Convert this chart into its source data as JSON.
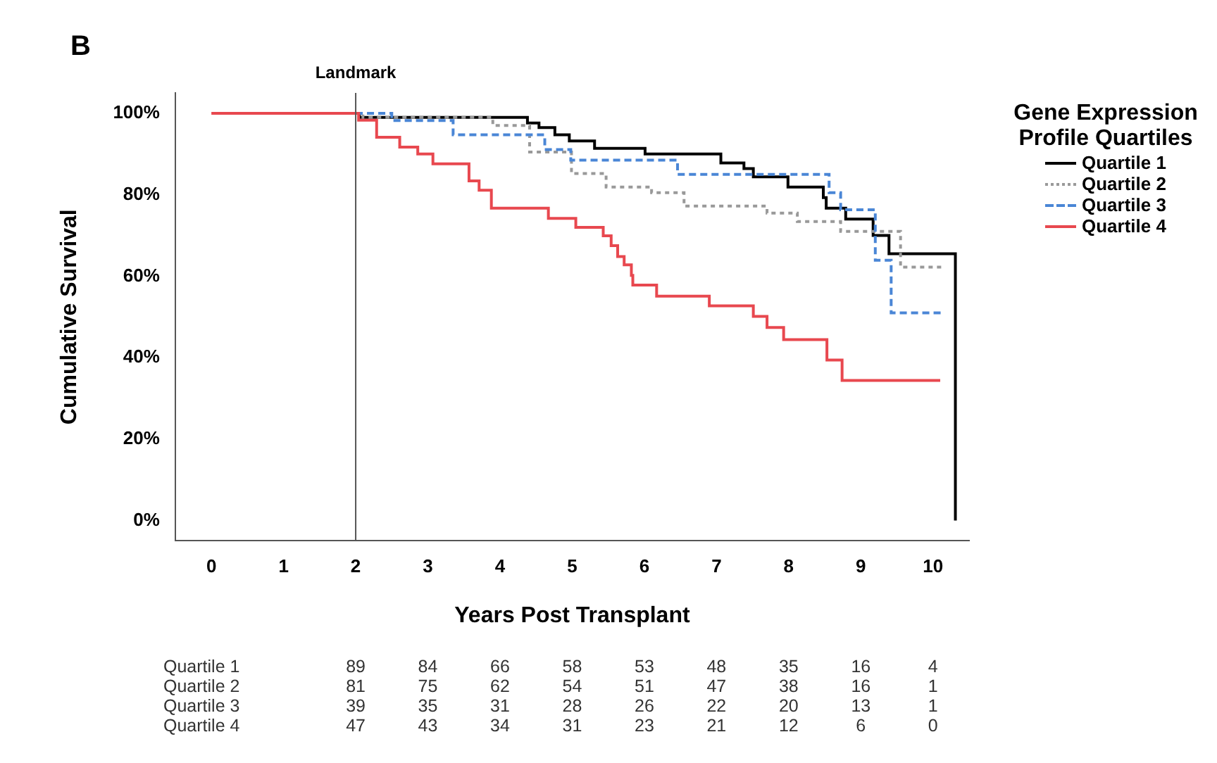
{
  "chart_data": [
    {
      "type": "step",
      "title": "B",
      "xlabel": "Years Post Transplant",
      "ylabel": "Cumulative Survival",
      "legend_title": "Gene Expression Profile Quartiles",
      "legend": "top right",
      "grid": false,
      "marker": "none",
      "xlim": [
        -0.5,
        10.5
      ],
      "xticks": [
        0,
        1,
        2,
        3,
        4,
        5,
        6,
        7,
        8,
        9,
        10
      ],
      "ylim": [
        -5,
        105
      ],
      "yticks": [
        {
          "value": 0,
          "label": "0%"
        },
        {
          "value": 20,
          "label": "20%"
        },
        {
          "value": 40,
          "label": "40%"
        },
        {
          "value": 60,
          "label": "60%"
        },
        {
          "value": 80,
          "label": "80%"
        },
        {
          "value": 100,
          "label": "100%"
        }
      ],
      "ref_lines": [
        {
          "axis": "x",
          "value": 2,
          "label": "Landmark",
          "color": "#555555",
          "line_style": "solid"
        }
      ],
      "series": [
        {
          "name": "Quartile 1",
          "color": "#000000",
          "line_style": "solid",
          "x": [
            2,
            2.05,
            4.38,
            4.54,
            4.76,
            4.96,
            5.31,
            6.01,
            7.06,
            7.38,
            7.51,
            7.99,
            8.48,
            8.52,
            8.79,
            9.17,
            9.39,
            10.31,
            10.31
          ],
          "values": [
            100,
            99,
            97.6,
            96.5,
            94.7,
            93.2,
            91.4,
            90,
            87.8,
            86.4,
            84.4,
            81.9,
            79.3,
            76.7,
            74,
            70,
            65.5,
            65.5,
            0
          ]
        },
        {
          "name": "Quartile 2",
          "color": "#999999",
          "line_style": "dotted",
          "x": [
            2,
            2.1,
            3.9,
            4.41,
            4.99,
            5.47,
            6.1,
            6.55,
            7.7,
            8.12,
            8.72,
            9.55,
            10.15
          ],
          "values": [
            100,
            99,
            97,
            90.5,
            85.2,
            81.9,
            80.5,
            77.2,
            75.5,
            73.4,
            71,
            62.2,
            62.2
          ]
        },
        {
          "name": "Quartile 3",
          "color": "#4a86d6",
          "line_style": "dashed",
          "x": [
            2,
            2.5,
            3.35,
            4.62,
            4.98,
            6.46,
            8.56,
            8.72,
            9.2,
            9.42,
            10.13
          ],
          "values": [
            100,
            98.2,
            94.7,
            91.1,
            88.5,
            85,
            80.5,
            76.3,
            63.9,
            51,
            51
          ]
        },
        {
          "name": "Quartile 4",
          "color": "#e8484f",
          "line_style": "solid",
          "x": [
            0,
            2.04,
            2.29,
            2.61,
            2.86,
            3.07,
            3.57,
            3.71,
            3.88,
            4.67,
            5.05,
            5.43,
            5.54,
            5.63,
            5.72,
            5.82,
            5.84,
            6.17,
            6.9,
            7.51,
            7.7,
            7.93,
            8.53,
            8.74,
            10.1
          ],
          "values": [
            100,
            98.3,
            94.1,
            91.7,
            90,
            87.6,
            83.4,
            81.1,
            76.7,
            74.2,
            72,
            69.9,
            67.5,
            64.8,
            62.8,
            60.2,
            57.8,
            55.1,
            52.7,
            50.1,
            47.4,
            44.4,
            39.4,
            34.4,
            34.4
          ]
        }
      ]
    },
    {
      "type": "heatmap",
      "data_labels": true,
      "categories": [
        null,
        null,
        null,
        null,
        null,
        null,
        null,
        null,
        null
      ],
      "y_categories": [
        "Quartile 1",
        "Quartile 2",
        "Quartile 3",
        "Quartile 4"
      ],
      "cells": [
        [
          89,
          84,
          66,
          58,
          53,
          48,
          35,
          16,
          4
        ],
        [
          81,
          75,
          62,
          54,
          51,
          47,
          38,
          16,
          1
        ],
        [
          39,
          35,
          31,
          28,
          26,
          22,
          20,
          13,
          1
        ],
        [
          47,
          43,
          34,
          31,
          23,
          21,
          12,
          6,
          0
        ]
      ]
    }
  ]
}
